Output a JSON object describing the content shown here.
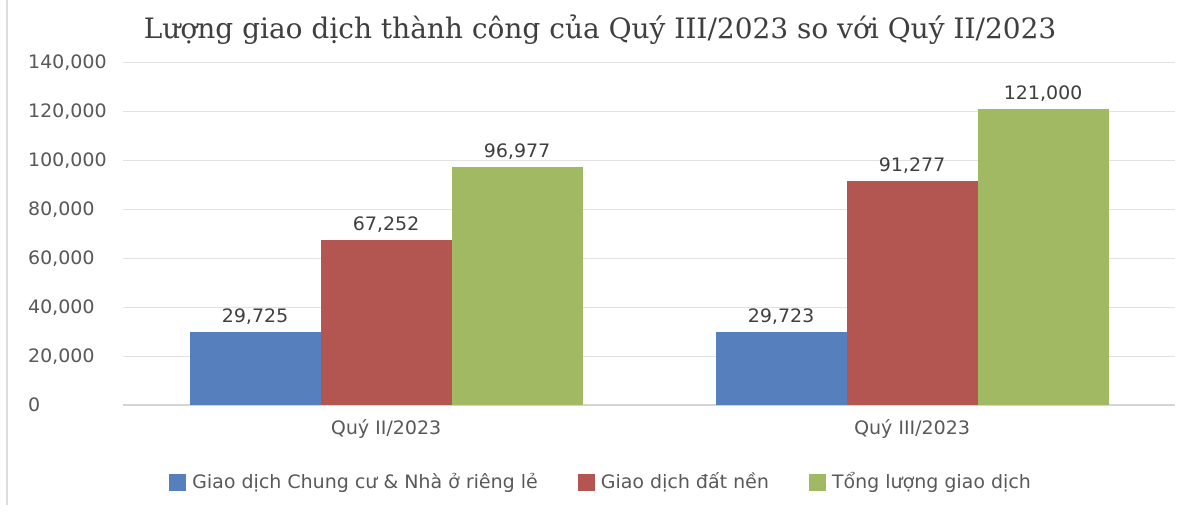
{
  "chart_data": {
    "type": "bar",
    "title": "Lượng giao dịch thành công của Quý III/2023 so với Quý II/2023",
    "categories": [
      "Quý II/2023",
      "Quý III/2023"
    ],
    "series": [
      {
        "name": "Giao dịch Chung cư & Nhà ở riêng lẻ",
        "color": "#5580BD",
        "values": [
          29725,
          29723
        ],
        "value_labels": [
          "29,725",
          "29,723"
        ]
      },
      {
        "name": "Giao dịch đất nền",
        "color": "#B35551",
        "values": [
          67252,
          91277
        ],
        "value_labels": [
          "67,252",
          "91,277"
        ]
      },
      {
        "name": "Tổng lượng giao dịch",
        "color": "#A2B963",
        "values": [
          96977,
          121000
        ],
        "value_labels": [
          "96,977",
          "121,000"
        ]
      }
    ],
    "ylim": [
      0,
      140000
    ],
    "ytick_step": 20000,
    "ytick_labels": [
      "0",
      "20,000",
      "40,000",
      "60,000",
      "80,000",
      "100,000",
      "120,000",
      "140,000"
    ],
    "grid": true,
    "legend_position": "bottom"
  }
}
